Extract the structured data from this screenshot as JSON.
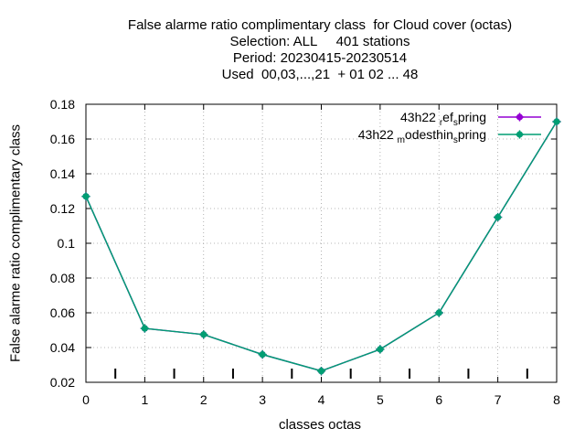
{
  "chart_data": {
    "type": "line",
    "title_lines": [
      "False alarme ratio complimentary class  for Cloud cover (octas)",
      "Selection: ALL     401 stations",
      "Period: 20230415-20230514",
      "Used  00,03,...,21  + 01 02 ... 48"
    ],
    "xlabel": "classes octas",
    "ylabel": "False alarme ratio complimentary class",
    "xlim": [
      0,
      8
    ],
    "ylim": [
      0.02,
      0.18
    ],
    "xticks": [
      "0",
      "1",
      "2",
      "3",
      "4",
      "5",
      "6",
      "7",
      "8"
    ],
    "yticks": [
      "0.02",
      "0.04",
      "0.06",
      "0.08",
      "0.1",
      "0.12",
      "0.14",
      "0.16",
      "0.18"
    ],
    "grid": true,
    "legend_position": "top-right",
    "minor_marks_x": [
      0.5,
      1.5,
      2.5,
      3.5,
      4.5,
      5.5,
      6.5,
      7.5
    ],
    "series": [
      {
        "name": "43h22 _ref_spring",
        "legend_parts": [
          "43h22 ",
          "r",
          "ef",
          "s",
          "pring"
        ],
        "color": "#9400d3",
        "x": [
          0,
          1,
          2,
          3,
          4,
          5,
          6,
          7,
          8
        ],
        "values": [
          0.127,
          0.051,
          0.0475,
          0.036,
          0.0265,
          0.039,
          0.06,
          0.115,
          0.17
        ]
      },
      {
        "name": "43h22 _modesthin_spring",
        "legend_parts": [
          "43h22 ",
          "m",
          "odesthin",
          "s",
          "pring"
        ],
        "color": "#009e73",
        "x": [
          0,
          1,
          2,
          3,
          4,
          5,
          6,
          7,
          8
        ],
        "values": [
          0.127,
          0.051,
          0.0475,
          0.036,
          0.0265,
          0.039,
          0.06,
          0.115,
          0.17
        ]
      }
    ]
  }
}
